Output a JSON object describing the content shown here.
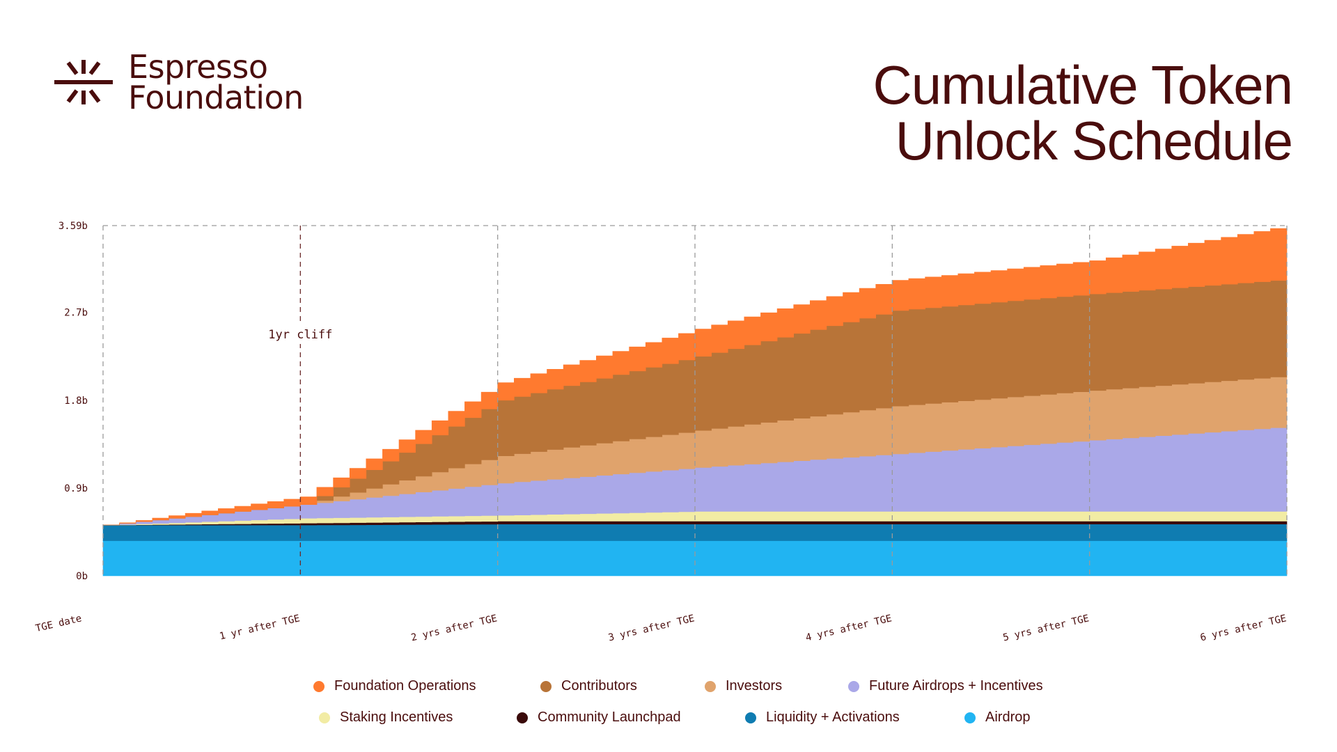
{
  "brand": {
    "line1": "Espresso",
    "line2": "Foundation"
  },
  "header": {
    "title_line1": "Cumulative Token",
    "title_line2": "Unlock Schedule"
  },
  "chart_data": {
    "type": "area",
    "stacked": true,
    "title": "Cumulative Token Unlock Schedule",
    "x_unit": "years after TGE",
    "x": [
      0,
      1,
      2,
      3,
      4,
      5,
      6
    ],
    "x_tick_labels": [
      "TGE date",
      "1 yr after TGE",
      "2 yrs after TGE",
      "3 yrs after TGE",
      "4 yrs after TGE",
      "5 yrs after TGE",
      "6 yrs after TGE"
    ],
    "y_tick_labels": [
      "0b",
      "0.9b",
      "1.8b",
      "2.7b",
      "3.59b"
    ],
    "y_ticks": [
      0,
      0.9,
      1.8,
      2.7,
      3.59
    ],
    "ylim": [
      0,
      3.59
    ],
    "y_unit": "billion tokens",
    "annotation": {
      "text": "1yr cliff",
      "x": 1
    },
    "series": [
      {
        "name": "Airdrop",
        "color": "#21b4f2",
        "values": [
          0.36,
          0.36,
          0.36,
          0.36,
          0.36,
          0.36,
          0.36
        ]
      },
      {
        "name": "Liquidity + Activations",
        "color": "#0f7cb1",
        "values": [
          0.16,
          0.16,
          0.17,
          0.17,
          0.17,
          0.17,
          0.17
        ]
      },
      {
        "name": "Community Launchpad",
        "color": "#3a0a0a",
        "values": [
          0.0,
          0.02,
          0.03,
          0.03,
          0.03,
          0.03,
          0.03
        ]
      },
      {
        "name": "Staking Incentives",
        "color": "#f2eca4",
        "values": [
          0.0,
          0.05,
          0.06,
          0.1,
          0.1,
          0.1,
          0.1
        ]
      },
      {
        "name": "Future Airdrops + Incentives",
        "color": "#aaa8e8",
        "values": [
          0.0,
          0.14,
          0.33,
          0.45,
          0.59,
          0.73,
          0.87
        ]
      },
      {
        "name": "Investors",
        "color": "#e0a36c",
        "values": [
          0.0,
          0.0,
          0.28,
          0.38,
          0.49,
          0.51,
          0.52
        ]
      },
      {
        "name": "Contributors",
        "color": "#b87438",
        "values": [
          0.0,
          0.0,
          0.57,
          0.76,
          0.98,
          0.99,
          0.99
        ]
      },
      {
        "name": "Foundation Operations",
        "color": "#ff7a2f",
        "values": [
          0.0,
          0.08,
          0.18,
          0.28,
          0.31,
          0.34,
          0.55
        ]
      }
    ],
    "legend_order": [
      "Foundation Operations",
      "Contributors",
      "Investors",
      "Future Airdrops + Incentives",
      "Staking Incentives",
      "Community Launchpad",
      "Liquidity + Activations",
      "Airdrop"
    ]
  }
}
